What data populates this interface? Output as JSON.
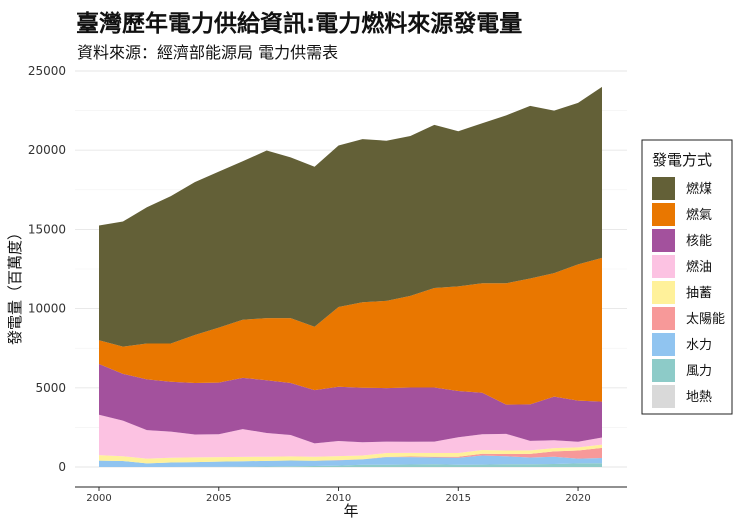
{
  "chart_data": {
    "type": "area",
    "stacked": true,
    "title": "臺灣歷年電力供給資訊:電力燃料來源發電量",
    "subtitle": "資料來源：經濟部能源局 電力供需表",
    "xlabel": "年",
    "ylabel": "發電量（百萬度）",
    "ylim": [
      0,
      25000
    ],
    "xlim": [
      2000,
      2021
    ],
    "y_ticks": [
      0,
      5000,
      10000,
      15000,
      20000,
      25000
    ],
    "x_ticks": [
      2000,
      2005,
      2010,
      2015,
      2020
    ],
    "legend_title": "發電方式",
    "legend_position": "right",
    "x": [
      2000,
      2001,
      2002,
      2003,
      2004,
      2005,
      2006,
      2007,
      2008,
      2009,
      2010,
      2011,
      2012,
      2013,
      2014,
      2015,
      2016,
      2017,
      2018,
      2019,
      2020,
      2021
    ],
    "series": [
      {
        "name": "地熱",
        "color": "#d9d9d9",
        "values": [
          0,
          0,
          0,
          0,
          0,
          0,
          0,
          0,
          0,
          0,
          0,
          0,
          0,
          0,
          0,
          0,
          0,
          0,
          0,
          0,
          0,
          0
        ]
      },
      {
        "name": "風力",
        "color": "#8dcbc8",
        "values": [
          0,
          0,
          0,
          0,
          5,
          10,
          20,
          30,
          50,
          65,
          90,
          140,
          140,
          160,
          170,
          140,
          150,
          170,
          170,
          190,
          230,
          240
        ]
      },
      {
        "name": "水力",
        "color": "#90c4f0",
        "values": [
          400,
          380,
          230,
          280,
          300,
          330,
          340,
          360,
          360,
          330,
          340,
          340,
          480,
          460,
          430,
          440,
          580,
          510,
          430,
          460,
          300,
          330
        ]
      },
      {
        "name": "太陽能",
        "color": "#f79999",
        "values": [
          0,
          0,
          0,
          0,
          0,
          0,
          0,
          0,
          0,
          0,
          10,
          10,
          20,
          40,
          50,
          70,
          110,
          140,
          230,
          340,
          510,
          640
        ]
      },
      {
        "name": "抽蓄",
        "color": "#fff19a",
        "values": [
          350,
          300,
          300,
          300,
          300,
          280,
          280,
          260,
          260,
          250,
          250,
          240,
          240,
          230,
          230,
          230,
          230,
          220,
          220,
          200,
          200,
          200
        ]
      },
      {
        "name": "燃油",
        "color": "#fcc2e2",
        "values": [
          2550,
          2250,
          1800,
          1650,
          1450,
          1450,
          1750,
          1500,
          1350,
          850,
          950,
          830,
          720,
          700,
          720,
          1000,
          1000,
          1050,
          600,
          500,
          350,
          450
        ]
      },
      {
        "name": "核能",
        "color": "#a3519d",
        "values": [
          3200,
          2950,
          3200,
          3150,
          3250,
          3260,
          3240,
          3330,
          3280,
          3360,
          3430,
          3440,
          3380,
          3430,
          3420,
          2920,
          2620,
          1850,
          2300,
          2750,
          2600,
          2270
        ]
      },
      {
        "name": "燃氣",
        "color": "#e97700",
        "values": [
          1500,
          1720,
          2270,
          2420,
          3030,
          3470,
          3670,
          3920,
          4100,
          4000,
          5030,
          5400,
          5510,
          5780,
          6280,
          6600,
          6910,
          7660,
          7950,
          7800,
          8600,
          9070
        ]
      },
      {
        "name": "燃煤",
        "color": "#636037",
        "values": [
          7250,
          7900,
          8600,
          9300,
          9650,
          9850,
          10000,
          10580,
          10150,
          10100,
          10200,
          10300,
          10110,
          10100,
          10300,
          9800,
          10100,
          10600,
          10900,
          10260,
          10200,
          10800
        ]
      }
    ]
  }
}
